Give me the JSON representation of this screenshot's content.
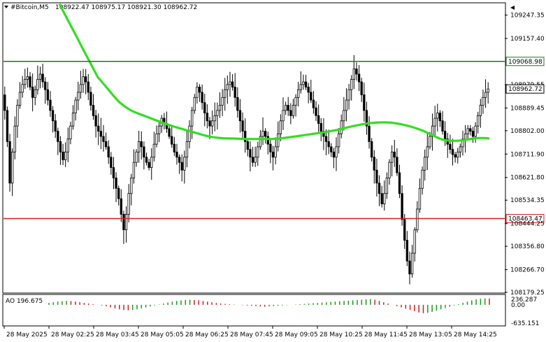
{
  "header": {
    "symbol": "#Bitcoin,M5",
    "ohlc": "108922.47 108975.17 108921.30 108962.72"
  },
  "indicator": {
    "label": "AO 196.675",
    "scale_top": "236.287",
    "scale_zero": "0.00",
    "scale_bottom": "-635.151"
  },
  "price_axis": {
    "ticks": [
      "109247.35",
      "109157.40",
      "108979.55",
      "108889.45",
      "108802.00",
      "108711.90",
      "108621.80",
      "108534.35",
      "108444.25",
      "108356.80",
      "108266.70",
      "108179.25"
    ],
    "levels": [
      {
        "label": "109068.98",
        "value": 109068.98,
        "color": "#1a7a1a"
      },
      {
        "label": "108463.47",
        "value": 108463.47,
        "color": "#d62020"
      }
    ],
    "current_label": "108962.72",
    "current_value": 108962.72
  },
  "time_axis": {
    "labels": [
      "28 May 2025",
      "28 May 02:25",
      "28 May 03:45",
      "28 May 05:05",
      "28 May 06:25",
      "28 May 07:45",
      "28 May 09:05",
      "28 May 10:25",
      "28 May 11:45",
      "28 May 13:05",
      "28 May 14:25"
    ]
  },
  "colors": {
    "candle": "#000000",
    "ma": "#33dd22",
    "ao_up": "#1a9a1a",
    "ao_down": "#cc2020"
  },
  "chart_data": {
    "type": "candlestick",
    "title": "#Bitcoin,M5",
    "ylim": [
      108179.25,
      109292
    ],
    "closes": [
      108880,
      108760,
      108600,
      108720,
      108820,
      108900,
      108950,
      108980,
      109000,
      109010,
      108970,
      108930,
      108960,
      109000,
      109020,
      108990,
      108960,
      108920,
      108880,
      108840,
      108800,
      108760,
      108720,
      108690,
      108720,
      108770,
      108820,
      108870,
      108920,
      108950,
      108980,
      109010,
      108990,
      108950,
      108900,
      108860,
      108820,
      108800,
      108780,
      108760,
      108740,
      108700,
      108660,
      108620,
      108580,
      108540,
      108480,
      108420,
      108480,
      108560,
      108620,
      108680,
      108720,
      108760,
      108740,
      108700,
      108680,
      108660,
      108700,
      108750,
      108790,
      108820,
      108850,
      108830,
      108810,
      108780,
      108750,
      108720,
      108700,
      108680,
      108650,
      108700,
      108760,
      108820,
      108880,
      108930,
      108970,
      108950,
      108910,
      108870,
      108840,
      108820,
      108840,
      108860,
      108880,
      108900,
      108930,
      108960,
      108980,
      108990,
      108970,
      108930,
      108880,
      108840,
      108800,
      108760,
      108730,
      108700,
      108680,
      108700,
      108740,
      108780,
      108800,
      108780,
      108750,
      108720,
      108700,
      108740,
      108790,
      108840,
      108880,
      108900,
      108880,
      108860,
      108900,
      108930,
      108960,
      108980,
      108990,
      108970,
      108950,
      108920,
      108890,
      108860,
      108830,
      108800,
      108780,
      108760,
      108740,
      108720,
      108700,
      108740,
      108790,
      108840,
      108880,
      108920,
      108960,
      109000,
      109040,
      109020,
      108990,
      108940,
      108880,
      108820,
      108760,
      108700,
      108650,
      108600,
      108560,
      108520,
      108560,
      108620,
      108680,
      108720,
      108700,
      108640,
      108560,
      108460,
      108380,
      108300,
      108250,
      108330,
      108420,
      108500,
      108580,
      108650,
      108700,
      108740,
      108780,
      108820,
      108850,
      108870,
      108840,
      108800,
      108770,
      108750,
      108730,
      108710,
      108700,
      108720,
      108740,
      108770,
      108790,
      108810,
      108800,
      108780,
      108820,
      108860,
      108900,
      108930,
      108950,
      108962.72
    ],
    "moving_average": [
      109290,
      109250,
      109210,
      109170,
      109130,
      109090,
      109050,
      109010,
      108985,
      108960,
      108935,
      108912,
      108895,
      108882,
      108872,
      108864,
      108856,
      108848,
      108840,
      108832,
      108825,
      108818,
      108812,
      108806,
      108800,
      108794,
      108788,
      108782,
      108778,
      108775,
      108773,
      108772,
      108772,
      108771,
      108770,
      108770,
      108770,
      108770,
      108770,
      108770,
      108771,
      108773,
      108776,
      108779,
      108782,
      108785,
      108788,
      108791,
      108794,
      108797,
      108801,
      108805,
      108810,
      108815,
      108820,
      108824,
      108828,
      108831,
      108833,
      108834,
      108834,
      108833,
      108830,
      108826,
      108821,
      108815,
      108808,
      108800,
      108790,
      108780,
      108770,
      108765,
      108763,
      108763,
      108765,
      108768,
      108772,
      108774,
      108774,
      108772
    ],
    "levels": [
      109068.98,
      108463.47
    ],
    "current_price": 108962.72,
    "ao": {
      "values": [
        60,
        80,
        100,
        110,
        120,
        115,
        100,
        80,
        60,
        40,
        20,
        0,
        -20,
        -50,
        -80,
        -110,
        -140,
        -160,
        -170,
        -160,
        -140,
        -110,
        -80,
        -50,
        -20,
        10,
        40,
        70,
        100,
        120,
        140,
        150,
        160,
        150,
        140,
        120,
        100,
        80,
        60,
        40,
        30,
        20,
        10,
        0,
        -10,
        -20,
        -30,
        -40,
        -50,
        -60,
        -50,
        -40,
        -30,
        -20,
        -10,
        0,
        10,
        20,
        30,
        40,
        50,
        60,
        70,
        80,
        90,
        100,
        110,
        120,
        130,
        140,
        150,
        160,
        170,
        180,
        160,
        120,
        80,
        40,
        0,
        -40,
        -80,
        -120,
        -160,
        -200,
        -240,
        -260,
        -250,
        -220,
        -180,
        -140,
        -100,
        -60,
        -20,
        20,
        60,
        100,
        140,
        170,
        190,
        200,
        196.675
      ],
      "ylim": [
        -635.151,
        236.287
      ]
    }
  }
}
